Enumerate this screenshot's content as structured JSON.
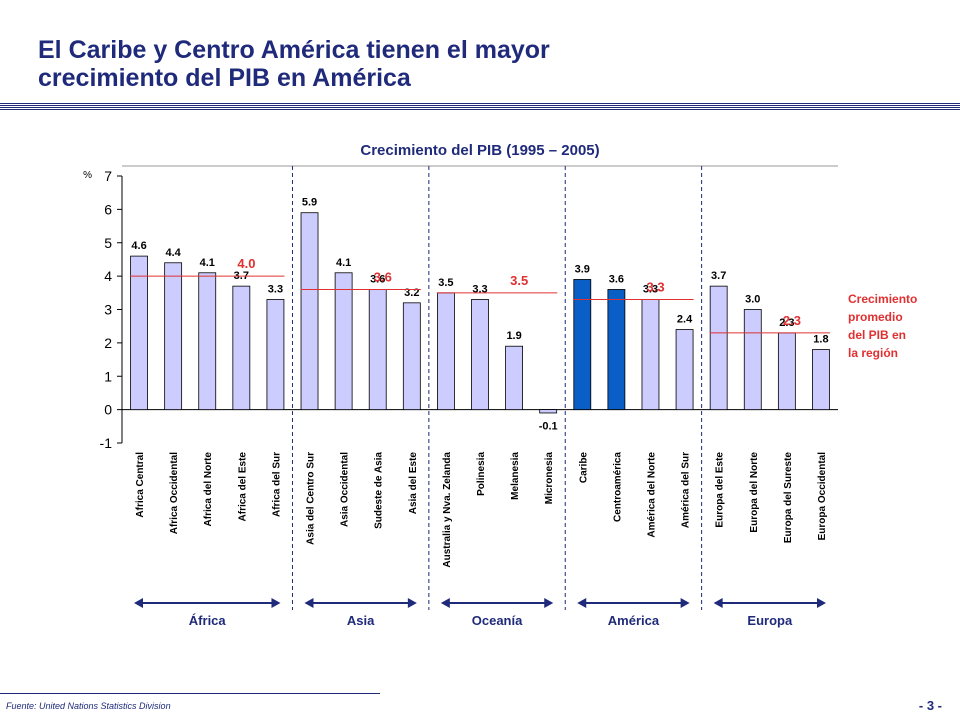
{
  "page": {
    "title_line1": "El Caribe y Centro América tienen el mayor",
    "title_line2": "crecimiento del PIB en América",
    "source": "Fuente: United Nations Statistics Division",
    "page_number": "- 3 -"
  },
  "colors": {
    "title": "#1f2a7a",
    "bar_default": "#ccccff",
    "bar_highlight": "#0a5fc6",
    "bar_stroke": "#000000",
    "avg_line": "#e03030",
    "avg_text": "#e03030",
    "group_divider": "#1f2a7a",
    "arrow": "#1f2a7a"
  },
  "chart_data": {
    "type": "bar",
    "title": "Crecimiento del PIB (1995 – 2005)",
    "ylabel": "%",
    "ylim": [
      -1,
      7
    ],
    "yticks": [
      -1,
      0,
      1,
      2,
      3,
      4,
      5,
      6,
      7
    ],
    "categories": [
      "Africa Central",
      "Africa Occidental",
      "Africa del Norte",
      "Africa del Este",
      "Africa del Sur",
      "Asia del Centro Sur",
      "Asia Occidental",
      "Sudeste de Asia",
      "Asia del Este",
      "Australia y Nva. Zelanda",
      "Polinesia",
      "Melanesia",
      "Micronesia",
      "Caribe",
      "Centroamérica",
      "América del Norte",
      "América del Sur",
      "Europa del Este",
      "Europa del Norte",
      "Europa del Sureste",
      "Europa Occidental"
    ],
    "values": [
      4.6,
      4.4,
      4.1,
      3.7,
      3.3,
      5.9,
      4.1,
      3.6,
      3.2,
      3.5,
      3.3,
      1.9,
      -0.1,
      3.9,
      3.6,
      3.3,
      2.4,
      3.7,
      3.0,
      2.3,
      1.8
    ],
    "value_labels": [
      "4.6",
      "4.4",
      "4.1",
      "3.7",
      "3.3",
      "5.9",
      "4.1",
      "3.6",
      "3.2",
      "3.5",
      "3.3",
      "1.9",
      "-0.1",
      "3.9",
      "3.6",
      "3.3",
      "2.4",
      "3.7",
      "3.0",
      "2.3",
      "1.8"
    ],
    "highlighted": [
      "Caribe",
      "Centroamérica"
    ],
    "groups": [
      {
        "name": "África",
        "start": 0,
        "end": 4,
        "average": 4.0,
        "average_label": "4.0"
      },
      {
        "name": "Asia",
        "start": 5,
        "end": 8,
        "average": 3.6,
        "average_label": "3.6"
      },
      {
        "name": "Oceanía",
        "start": 9,
        "end": 12,
        "average": 3.5,
        "average_label": "3.5"
      },
      {
        "name": "América",
        "start": 13,
        "end": 16,
        "average": 3.3,
        "average_label": "3.3"
      },
      {
        "name": "Europa",
        "start": 17,
        "end": 20,
        "average": 2.3,
        "average_label": "2.3"
      }
    ],
    "legend_lines": [
      "Crecimiento",
      "promedio",
      "del PIB en",
      "la región"
    ]
  }
}
